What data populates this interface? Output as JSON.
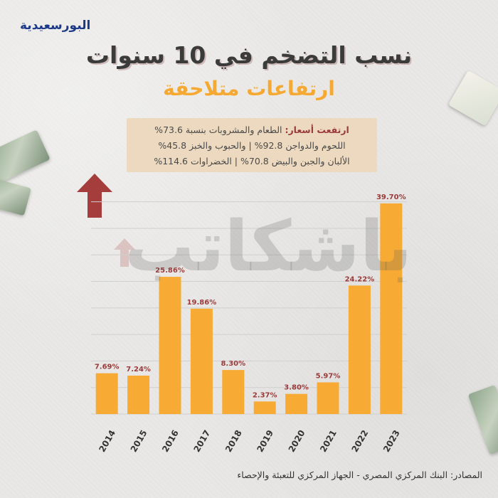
{
  "brand": {
    "logo_text": "البورسعيدية"
  },
  "header": {
    "title": "نسب التضخم في 10 سنوات",
    "subtitle": "ارتفاعات متلاحقة"
  },
  "info_box": {
    "line1_label": "ارتفعت أسعار:",
    "line1_text": " الطعام والمشروبات بنسبة 73.6%",
    "line2": "اللحوم والدواجن 92.8% | والحبوب والخبز 45.8%",
    "line3": "الألبان والجبن والبيض 70.8% | الخضراوات 114.6%"
  },
  "watermark": "باشكاتب",
  "source": "المصادر: البنك المركزي المصري - الجهاز المركزي للتعبئة والإحصاء",
  "colors": {
    "bar": "#f7ab35",
    "label": "#9b3a3a",
    "arrow": "#a53d3d",
    "title_accent": "#f5a932"
  },
  "chart_data": {
    "type": "bar",
    "categories": [
      "2014",
      "2015",
      "2016",
      "2017",
      "2018",
      "2019",
      "2020",
      "2021",
      "2022",
      "2023"
    ],
    "values": [
      7.69,
      7.24,
      25.86,
      19.86,
      8.3,
      2.37,
      3.8,
      5.97,
      24.22,
      39.7
    ],
    "labels": [
      "7.69%",
      "7.24%",
      "25.86%",
      "19.86%",
      "8.30%",
      "2.37%",
      "3.80%",
      "5.97%",
      "24.22%",
      "39.70%"
    ],
    "ylim": [
      0,
      42.5
    ],
    "grid": true,
    "title": "",
    "xlabel": "",
    "ylabel": ""
  }
}
